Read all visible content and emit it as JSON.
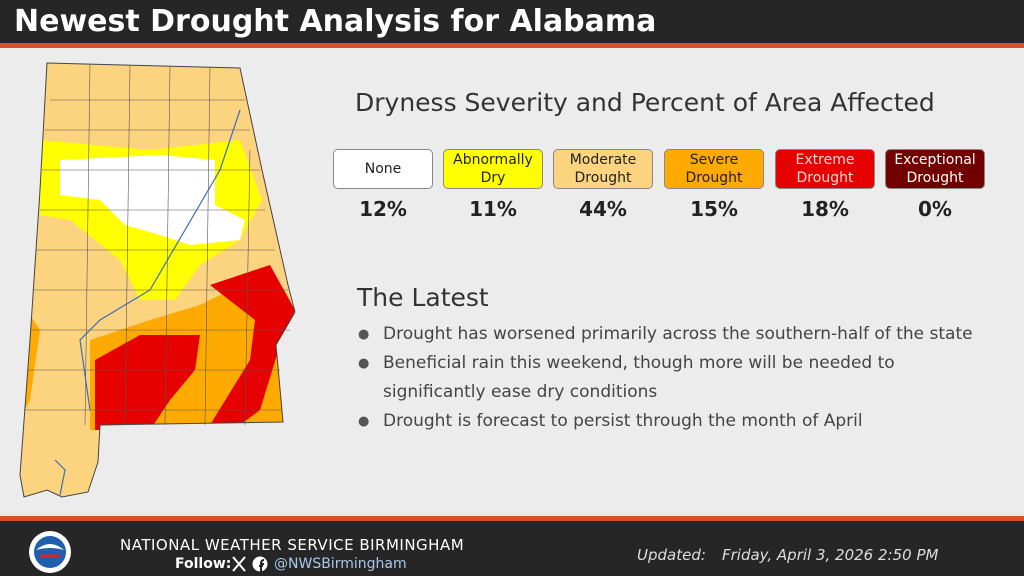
{
  "header": {
    "title": "Newest Drought Analysis for Alabama"
  },
  "legend": {
    "heading": "Dryness Severity and Percent of Area Affected",
    "items": [
      {
        "label": "None",
        "percent": "12%"
      },
      {
        "label": "Abnormally Dry",
        "percent": "11%"
      },
      {
        "label": "Moderate Drought",
        "percent": "44%"
      },
      {
        "label": "Severe Drought",
        "percent": "15%"
      },
      {
        "label": "Extreme Drought",
        "percent": "18%"
      },
      {
        "label": "Exceptional Drought",
        "percent": "0%"
      }
    ]
  },
  "latest": {
    "heading": "The Latest",
    "bullets": [
      "Drought has worsened primarily across the southern-half of the state",
      "Beneficial rain this weekend, though more will be needed to significantly ease dry conditions",
      "Drought is forecast to persist through the month of April"
    ]
  },
  "footer": {
    "office": "NATIONAL WEATHER SERVICE BIRMINGHAM",
    "follow": "Follow:",
    "handle": "@NWSBirmingham",
    "updated_label": "Updated:",
    "updated": "Friday, April 3, 2026 2:50 PM"
  }
}
